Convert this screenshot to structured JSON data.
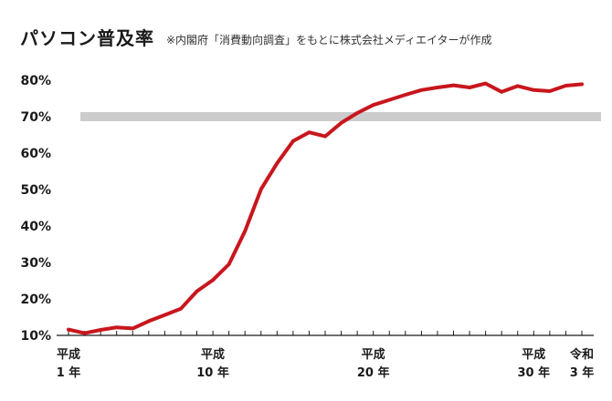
{
  "header": {
    "title": "パソコン普及率",
    "subtitle": "※内閣府「消費動向調査」をもとに株式会社メディエイターが作成"
  },
  "chart_data": {
    "type": "line",
    "title": "パソコン普及率",
    "subtitle": "※内閣府「消費動向調査」をもとに株式会社メディエイターが作成",
    "ylabel": "",
    "xlabel": "",
    "ylim": [
      10,
      80
    ],
    "y_ticks": [
      "10%",
      "20%",
      "30%",
      "40%",
      "50%",
      "60%",
      "70%",
      "80%"
    ],
    "x_tick_labels": [
      {
        "line1": "平成",
        "line2": "1 年",
        "year": 1989
      },
      {
        "line1": "平成",
        "line2": "10 年",
        "year": 1998
      },
      {
        "line1": "平成",
        "line2": "20 年",
        "year": 2008
      },
      {
        "line1": "平成",
        "line2": "30 年",
        "year": 2018
      },
      {
        "line1": "令和",
        "line2": "3 年",
        "year": 2021
      }
    ],
    "reference_band": {
      "value": 70,
      "color": "#cccccc"
    },
    "line_color": "#c8161d",
    "series": [
      {
        "x": [
          1989,
          1990,
          1991,
          1992,
          1993,
          1994,
          1995,
          1996,
          1997,
          1998,
          1999,
          2000,
          2001,
          2002,
          2003,
          2004,
          2005,
          2006,
          2007,
          2008,
          2009,
          2010,
          2011,
          2012,
          2013,
          2014,
          2015,
          2016,
          2017,
          2018,
          2019,
          2020,
          2021
        ],
        "values": [
          11.6,
          10.6,
          11.5,
          12.2,
          11.9,
          13.9,
          15.6,
          17.3,
          22.1,
          25.2,
          29.5,
          38.6,
          50.1,
          57.2,
          63.3,
          65.7,
          64.6,
          68.3,
          71.0,
          73.2,
          74.6,
          76.0,
          77.3,
          78.0,
          78.6,
          78.0,
          79.1,
          76.8,
          78.4,
          77.3,
          77.0,
          78.5,
          78.9
        ]
      }
    ]
  }
}
